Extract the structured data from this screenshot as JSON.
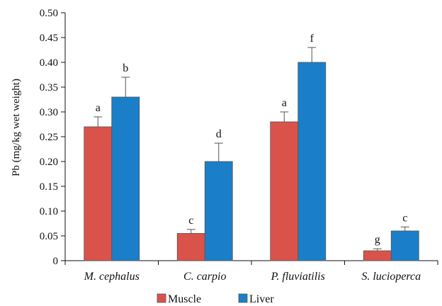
{
  "chart_data": {
    "type": "bar",
    "title": "",
    "xlabel": "",
    "ylabel": "Pb (mg/kg wet weight)",
    "ylim": [
      0,
      0.5
    ],
    "yticks": [
      "0",
      "0.05",
      "0.10",
      "0.15",
      "0.20",
      "0.25",
      "0.30",
      "0.35",
      "0.40",
      "0.45",
      "0.50"
    ],
    "grid": false,
    "legend_position": "bottom",
    "categories": [
      "M. cephalus",
      "C. carpio",
      "P. fluviatilis",
      "S. lucioperca"
    ],
    "series": [
      {
        "name": "Muscle",
        "color": "#d9534a",
        "values": [
          0.27,
          0.055,
          0.28,
          0.02
        ],
        "errors": [
          0.02,
          0.008,
          0.02,
          0.004
        ],
        "labels": [
          "a",
          "c",
          "a",
          "g"
        ]
      },
      {
        "name": "Liver",
        "color": "#1a7fc8",
        "values": [
          0.33,
          0.2,
          0.4,
          0.06
        ],
        "errors": [
          0.04,
          0.037,
          0.03,
          0.008
        ],
        "labels": [
          "b",
          "d",
          "f",
          "c"
        ]
      }
    ]
  }
}
